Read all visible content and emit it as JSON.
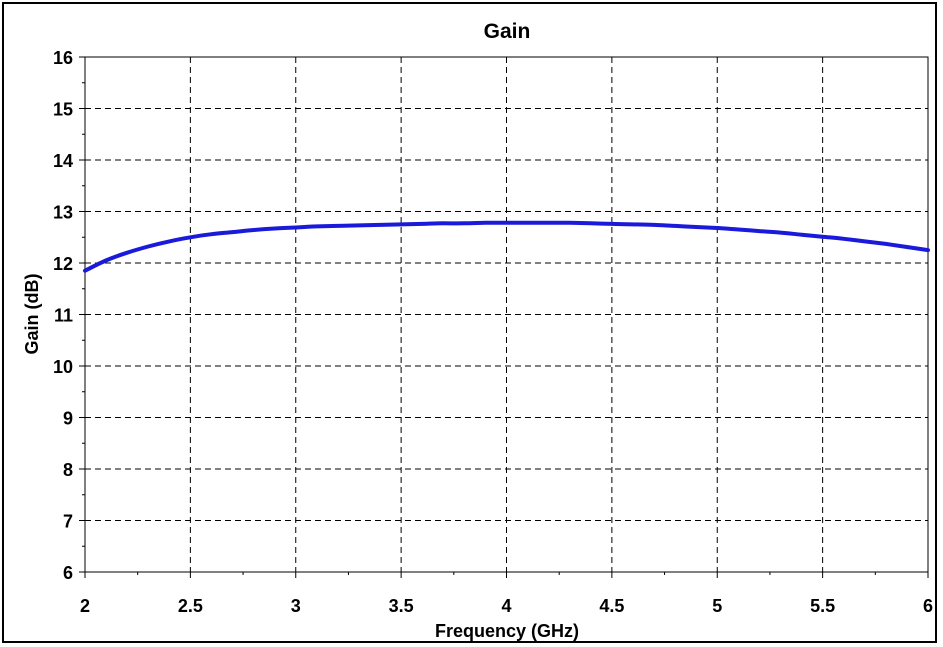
{
  "chart_data": {
    "type": "line",
    "title": "Gain",
    "xlabel": "Frequency (GHz)",
    "ylabel": "Gain (dB)",
    "xlim": [
      2,
      6
    ],
    "ylim": [
      6,
      16
    ],
    "x_ticks": [
      "2",
      "2.5",
      "3",
      "3.5",
      "4",
      "4.5",
      "5",
      "5.5",
      "6"
    ],
    "y_ticks": [
      "6",
      "7",
      "8",
      "9",
      "10",
      "11",
      "12",
      "13",
      "14",
      "15",
      "16"
    ],
    "grid": true,
    "legend": "none",
    "series": [
      {
        "color": "#1a1adb",
        "x": [
          2.0,
          2.1,
          2.2,
          2.3,
          2.4,
          2.5,
          2.6,
          2.7,
          2.8,
          2.9,
          3.0,
          3.1,
          3.2,
          3.3,
          3.4,
          3.5,
          3.6,
          3.7,
          3.8,
          3.9,
          4.0,
          4.1,
          4.2,
          4.3,
          4.4,
          4.5,
          4.6,
          4.7,
          4.8,
          4.9,
          5.0,
          5.1,
          5.2,
          5.3,
          5.4,
          5.5,
          5.6,
          5.7,
          5.8,
          5.9,
          6.0
        ],
        "y": [
          11.85,
          12.05,
          12.2,
          12.32,
          12.42,
          12.5,
          12.56,
          12.6,
          12.64,
          12.67,
          12.69,
          12.71,
          12.72,
          12.73,
          12.74,
          12.75,
          12.76,
          12.77,
          12.77,
          12.78,
          12.78,
          12.78,
          12.78,
          12.78,
          12.77,
          12.76,
          12.75,
          12.74,
          12.72,
          12.7,
          12.68,
          12.65,
          12.62,
          12.59,
          12.55,
          12.51,
          12.47,
          12.42,
          12.37,
          12.31,
          12.25
        ]
      }
    ]
  }
}
